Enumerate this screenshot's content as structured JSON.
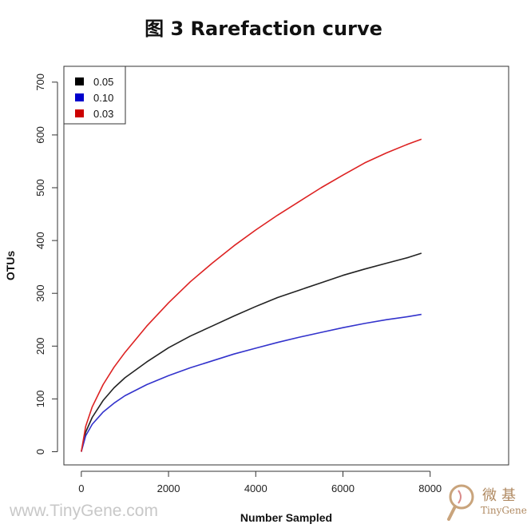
{
  "page": {
    "title": "图 3 Rarefaction curve"
  },
  "watermark": {
    "text": "www.TinyGene.com"
  },
  "logo": {
    "chinese": "微基",
    "english": "TinyGene"
  },
  "chart_data": {
    "type": "line",
    "title": "图 3 Rarefaction curve",
    "xlabel": "Number Sampled",
    "ylabel": "OTUs",
    "xlim": [
      -400,
      9800
    ],
    "ylim": [
      -25,
      730
    ],
    "xticks": [
      0,
      2000,
      4000,
      6000,
      8000
    ],
    "yticks": [
      0,
      100,
      200,
      300,
      400,
      500,
      600,
      700
    ],
    "grid": false,
    "legend_position": "top-left",
    "series": [
      {
        "name": "0.05",
        "legend_color": "#000000",
        "line_color": "#222222",
        "x": [
          0,
          100,
          250,
          500,
          750,
          1000,
          1500,
          2000,
          2500,
          3000,
          3500,
          4000,
          4500,
          5000,
          5500,
          6000,
          6500,
          7000,
          7500,
          7800
        ],
        "y": [
          0,
          37,
          65,
          97,
          121,
          140,
          170,
          197,
          219,
          238,
          257,
          275,
          292,
          306,
          320,
          334,
          346,
          357,
          368,
          376
        ]
      },
      {
        "name": "0.10",
        "legend_color": "#0000cc",
        "line_color": "#3333cc",
        "x": [
          0,
          100,
          250,
          500,
          750,
          1000,
          1500,
          2000,
          2500,
          3000,
          3500,
          4000,
          4500,
          5000,
          5500,
          6000,
          6500,
          7000,
          7500,
          7800
        ],
        "y": [
          0,
          30,
          52,
          75,
          92,
          106,
          127,
          144,
          159,
          172,
          185,
          196,
          207,
          217,
          226,
          235,
          243,
          250,
          256,
          260
        ]
      },
      {
        "name": "0.03",
        "legend_color": "#cc0000",
        "line_color": "#dd2222",
        "x": [
          0,
          100,
          250,
          500,
          750,
          1000,
          1500,
          2000,
          2500,
          3000,
          3500,
          4000,
          4500,
          5000,
          5500,
          6000,
          6500,
          7000,
          7500,
          7800
        ],
        "y": [
          0,
          48,
          85,
          127,
          160,
          188,
          238,
          282,
          322,
          357,
          390,
          420,
          448,
          474,
          500,
          524,
          547,
          566,
          583,
          592
        ]
      }
    ]
  }
}
